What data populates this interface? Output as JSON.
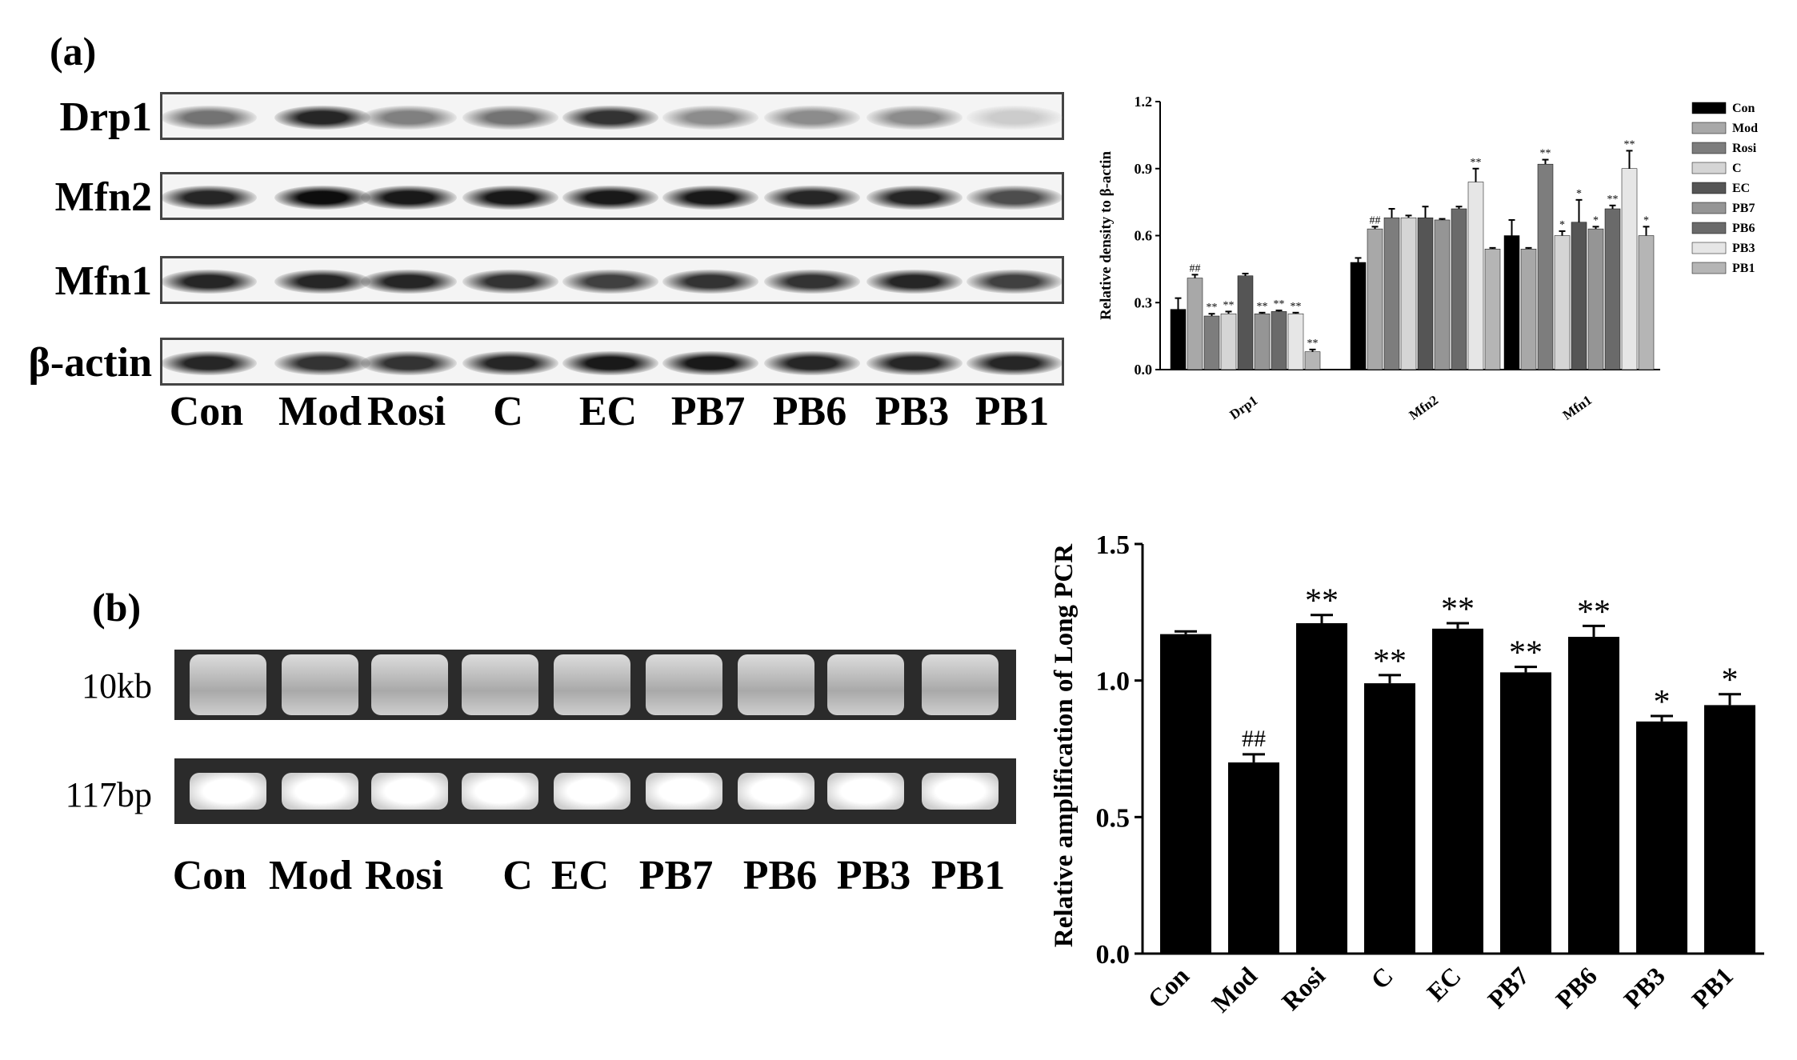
{
  "panels": {
    "a_label": "(a)",
    "b_label": "(b)"
  },
  "western_blot": {
    "rows": [
      "Drp1",
      "Mfn2",
      "Mfn1",
      "β-actin"
    ],
    "lanes": [
      "Con",
      "Mod",
      "Rosi",
      "C",
      "EC",
      "PB7",
      "PB6",
      "PB3",
      "PB1"
    ],
    "band_intensity": [
      [
        0.55,
        0.85,
        0.5,
        0.55,
        0.8,
        0.45,
        0.45,
        0.45,
        0.2
      ],
      [
        0.85,
        0.95,
        0.9,
        0.9,
        0.9,
        0.9,
        0.85,
        0.85,
        0.7
      ],
      [
        0.85,
        0.85,
        0.85,
        0.8,
        0.75,
        0.8,
        0.8,
        0.85,
        0.75
      ],
      [
        0.85,
        0.8,
        0.8,
        0.85,
        0.9,
        0.9,
        0.85,
        0.85,
        0.85
      ]
    ]
  },
  "gel": {
    "rows": [
      "10kb",
      "117bp"
    ],
    "lanes": [
      "Con",
      "Mod",
      "Rosi",
      "C",
      "EC",
      "PB7",
      "PB6",
      "PB3",
      "PB1"
    ]
  },
  "chart_data": [
    {
      "type": "bar",
      "ylabel": "Relative density to β-actin",
      "ylim": [
        0,
        1.2
      ],
      "yticks": [
        "0.0",
        "0.3",
        "0.6",
        "0.9",
        "1.2"
      ],
      "categories": [
        "Drp1",
        "Mfn2",
        "Mfn1"
      ],
      "legend_placement": "right",
      "series": [
        {
          "name": "Con",
          "color": "#000000",
          "values": [
            0.27,
            0.48,
            0.6
          ],
          "errors": [
            0.05,
            0.02,
            0.07
          ],
          "annotations": [
            "",
            "",
            ""
          ]
        },
        {
          "name": "Mod",
          "color": "#a8a8a8",
          "values": [
            0.41,
            0.63,
            0.54
          ],
          "errors": [
            0.015,
            0.01,
            0.005
          ],
          "annotations": [
            "##",
            "##",
            ""
          ]
        },
        {
          "name": "Rosi",
          "color": "#7d7d7d",
          "values": [
            0.24,
            0.68,
            0.92
          ],
          "errors": [
            0.01,
            0.04,
            0.02
          ],
          "annotations": [
            "**",
            "",
            "**"
          ]
        },
        {
          "name": "C",
          "color": "#d5d5d5",
          "values": [
            0.25,
            0.68,
            0.6
          ],
          "errors": [
            0.01,
            0.01,
            0.02
          ],
          "annotations": [
            "**",
            "",
            "*"
          ]
        },
        {
          "name": "EC",
          "color": "#555555",
          "values": [
            0.42,
            0.68,
            0.66
          ],
          "errors": [
            0.01,
            0.05,
            0.1
          ],
          "annotations": [
            "",
            "",
            "*"
          ]
        },
        {
          "name": "PB7",
          "color": "#959595",
          "values": [
            0.25,
            0.67,
            0.63
          ],
          "errors": [
            0.005,
            0.005,
            0.01
          ],
          "annotations": [
            "**",
            "",
            "*"
          ]
        },
        {
          "name": "PB6",
          "color": "#6a6a6a",
          "values": [
            0.26,
            0.72,
            0.72
          ],
          "errors": [
            0.005,
            0.01,
            0.015
          ],
          "annotations": [
            "**",
            "",
            "**"
          ]
        },
        {
          "name": "PB3",
          "color": "#e6e6e6",
          "values": [
            0.25,
            0.84,
            0.9
          ],
          "errors": [
            0.005,
            0.06,
            0.08
          ],
          "annotations": [
            "**",
            "**",
            "**"
          ]
        },
        {
          "name": "PB1",
          "color": "#b5b5b5",
          "values": [
            0.08,
            0.54,
            0.6
          ],
          "errors": [
            0.01,
            0.005,
            0.04
          ],
          "annotations": [
            "**",
            "",
            "*"
          ]
        }
      ]
    },
    {
      "type": "bar",
      "ylabel": "Relative amplification of Long PCR",
      "ylim": [
        0,
        1.5
      ],
      "yticks": [
        "0.0",
        "0.5",
        "1.0",
        "1.5"
      ],
      "categories": [
        "Con",
        "Mod",
        "Rosi",
        "C",
        "EC",
        "PB7",
        "PB6",
        "PB3",
        "PB1"
      ],
      "values": [
        1.17,
        0.7,
        1.21,
        0.99,
        1.19,
        1.03,
        1.16,
        0.85,
        0.91
      ],
      "errors": [
        0.01,
        0.03,
        0.03,
        0.03,
        0.02,
        0.02,
        0.04,
        0.02,
        0.04
      ],
      "annotations": [
        "",
        "##",
        "**",
        "**",
        "**",
        "**",
        "**",
        "*",
        "*"
      ],
      "color": "#000000"
    }
  ]
}
